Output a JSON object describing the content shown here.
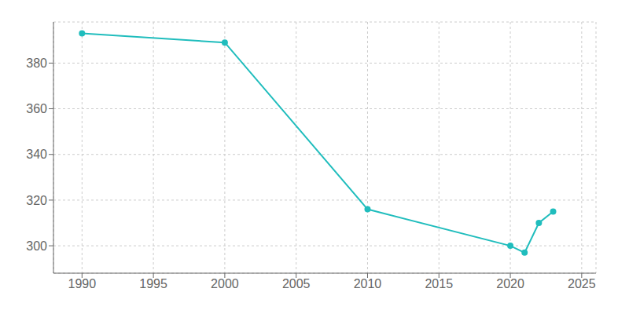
{
  "chart_data": {
    "type": "line",
    "x": [
      1990,
      2000,
      2010,
      2020,
      2021,
      2022,
      2023
    ],
    "values": [
      393,
      389,
      316,
      300,
      297,
      310,
      315
    ],
    "color": "#20BDBD",
    "marker": "circle",
    "xlim": [
      1988,
      2026
    ],
    "xticks": [
      1990,
      1995,
      2000,
      2005,
      2010,
      2015,
      2020,
      2025
    ],
    "ylim": [
      288,
      398
    ],
    "yticks": [
      300,
      320,
      340,
      360,
      380
    ],
    "grid": true
  }
}
